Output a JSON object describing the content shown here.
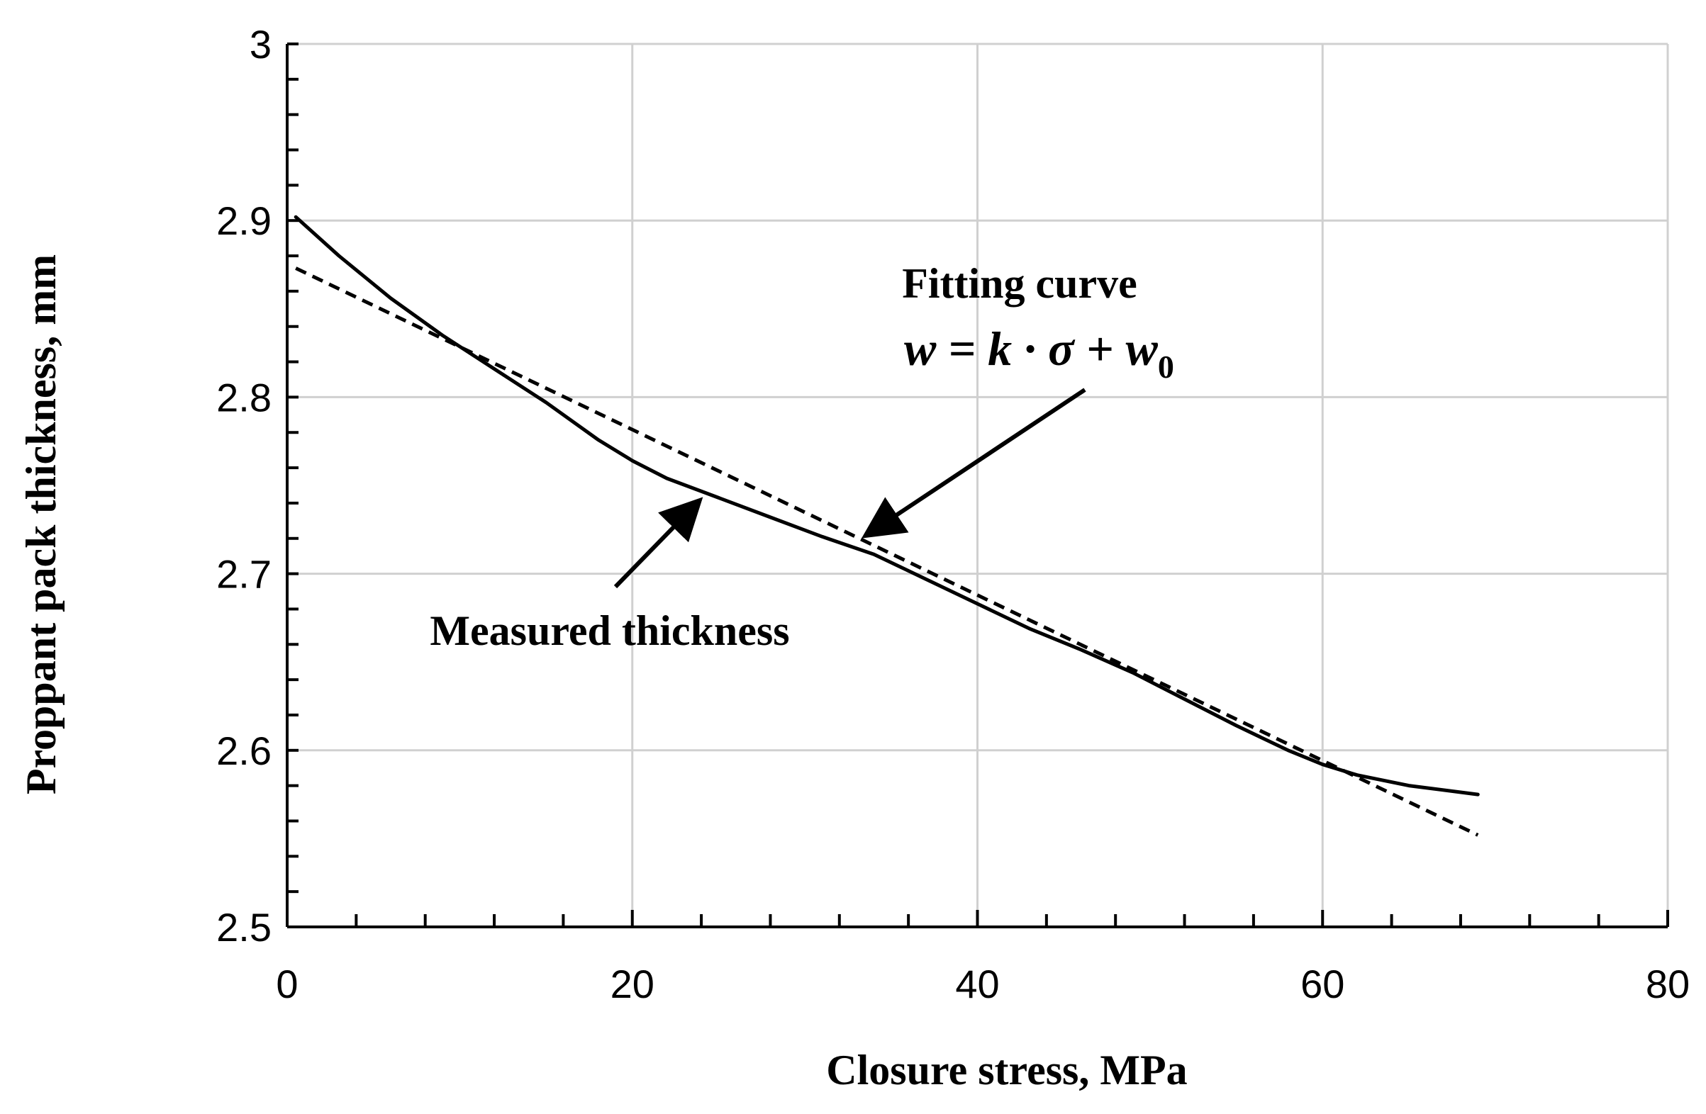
{
  "chart_data": {
    "type": "line",
    "title": "",
    "xlabel": "Closure stress, MPa",
    "ylabel": "Proppant pack thickness, mm",
    "xlim": [
      0,
      80
    ],
    "ylim": [
      2.5,
      3.0
    ],
    "x_ticks": [
      0,
      20,
      40,
      60,
      80
    ],
    "y_ticks": [
      2.5,
      2.6,
      2.7,
      2.8,
      2.9,
      3.0
    ],
    "x_tick_labels": [
      "0",
      "20",
      "40",
      "60",
      "80"
    ],
    "y_tick_labels": [
      "2.5",
      "2.6",
      "2.7",
      "2.8",
      "2.9",
      "3"
    ],
    "grid": true,
    "series": [
      {
        "name": "Measured thickness",
        "style": "solid",
        "color": "#000000",
        "x": [
          0.5,
          3,
          6,
          9,
          12,
          15,
          18,
          20,
          22,
          25,
          28,
          31,
          34,
          37,
          40,
          43,
          46,
          49,
          52,
          55,
          58,
          60,
          62,
          65,
          69
        ],
        "y": [
          2.902,
          2.88,
          2.856,
          2.835,
          2.816,
          2.797,
          2.776,
          2.764,
          2.754,
          2.743,
          2.732,
          2.721,
          2.711,
          2.697,
          2.683,
          2.669,
          2.657,
          2.644,
          2.629,
          2.614,
          2.6,
          2.592,
          2.586,
          2.58,
          2.575
        ]
      },
      {
        "name": "Fitting curve",
        "style": "dashed",
        "color": "#000000",
        "x": [
          0.5,
          69
        ],
        "y": [
          2.873,
          2.552
        ]
      }
    ],
    "annotations": [
      {
        "id": "fitting",
        "label": "Fitting curve",
        "equation": "w = k · σ + w",
        "equation_subscript": "0",
        "arrow_target": [
          33.5,
          2.72
        ]
      },
      {
        "id": "measured",
        "label": "Measured thickness",
        "arrow_target": [
          24,
          2.743
        ]
      }
    ]
  }
}
